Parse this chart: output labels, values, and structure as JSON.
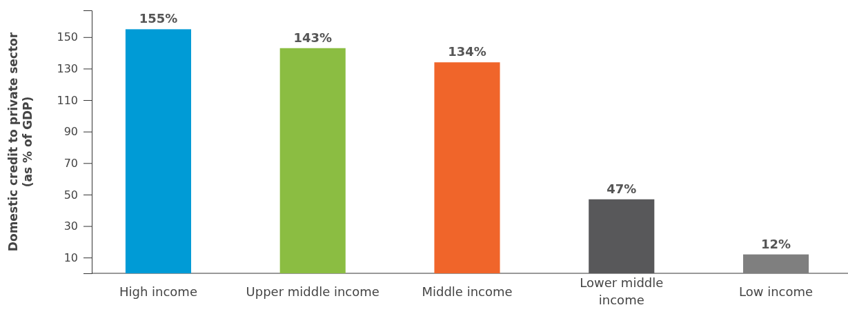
{
  "chart_data": {
    "type": "bar",
    "ylabel": "Domestic credit to private sector (as % of GDP)",
    "categories": [
      "High income",
      "Upper middle income",
      "Middle income",
      "Lower middle\nincome",
      "Low income"
    ],
    "values": [
      155,
      143,
      134,
      47,
      12
    ],
    "colors": [
      "#009bd6",
      "#8bbd42",
      "#f0652a",
      "#58585a",
      "#7f7f7f"
    ],
    "value_labels": [
      "155%",
      "143%",
      "134%",
      "47%",
      "12%"
    ],
    "ylim": [
      0,
      167
    ],
    "yticks": [
      10,
      30,
      50,
      70,
      90,
      110,
      130,
      150
    ]
  }
}
